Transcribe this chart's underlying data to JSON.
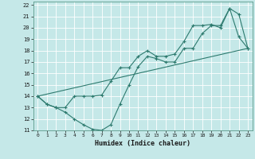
{
  "xlabel": "Humidex (Indice chaleur)",
  "bg_color": "#c5e8e8",
  "grid_color": "#ffffff",
  "line_color": "#2d7a6e",
  "xlim": [
    -0.5,
    23.5
  ],
  "ylim": [
    11,
    22.3
  ],
  "xticks": [
    0,
    1,
    2,
    3,
    4,
    5,
    6,
    7,
    8,
    9,
    10,
    11,
    12,
    13,
    14,
    15,
    16,
    17,
    18,
    19,
    20,
    21,
    22,
    23
  ],
  "yticks": [
    11,
    12,
    13,
    14,
    15,
    16,
    17,
    18,
    19,
    20,
    21,
    22
  ],
  "line1_x": [
    0,
    1,
    2,
    3,
    4,
    5,
    6,
    7,
    8,
    9,
    10,
    11,
    12,
    13,
    14,
    15,
    16,
    17,
    18,
    19,
    20,
    21,
    22,
    23
  ],
  "line1_y": [
    14,
    13.3,
    13.0,
    12.6,
    12.0,
    11.5,
    11.1,
    11.0,
    11.5,
    13.3,
    15.0,
    16.6,
    17.5,
    17.3,
    17.0,
    17.0,
    18.2,
    18.2,
    19.5,
    20.2,
    20.2,
    21.7,
    19.2,
    18.2
  ],
  "line2_x": [
    0,
    1,
    2,
    3,
    4,
    5,
    6,
    7,
    8,
    9,
    10,
    11,
    12,
    13,
    14,
    15,
    16,
    17,
    18,
    19,
    20,
    21,
    22,
    23
  ],
  "line2_y": [
    14,
    13.3,
    13.0,
    13.0,
    14.0,
    14.0,
    14.0,
    14.1,
    15.3,
    16.5,
    16.5,
    17.5,
    18.0,
    17.5,
    17.5,
    17.7,
    18.8,
    20.2,
    20.2,
    20.3,
    20.0,
    21.7,
    21.2,
    18.2
  ],
  "line3_x": [
    0,
    23
  ],
  "line3_y": [
    14,
    18.2
  ]
}
